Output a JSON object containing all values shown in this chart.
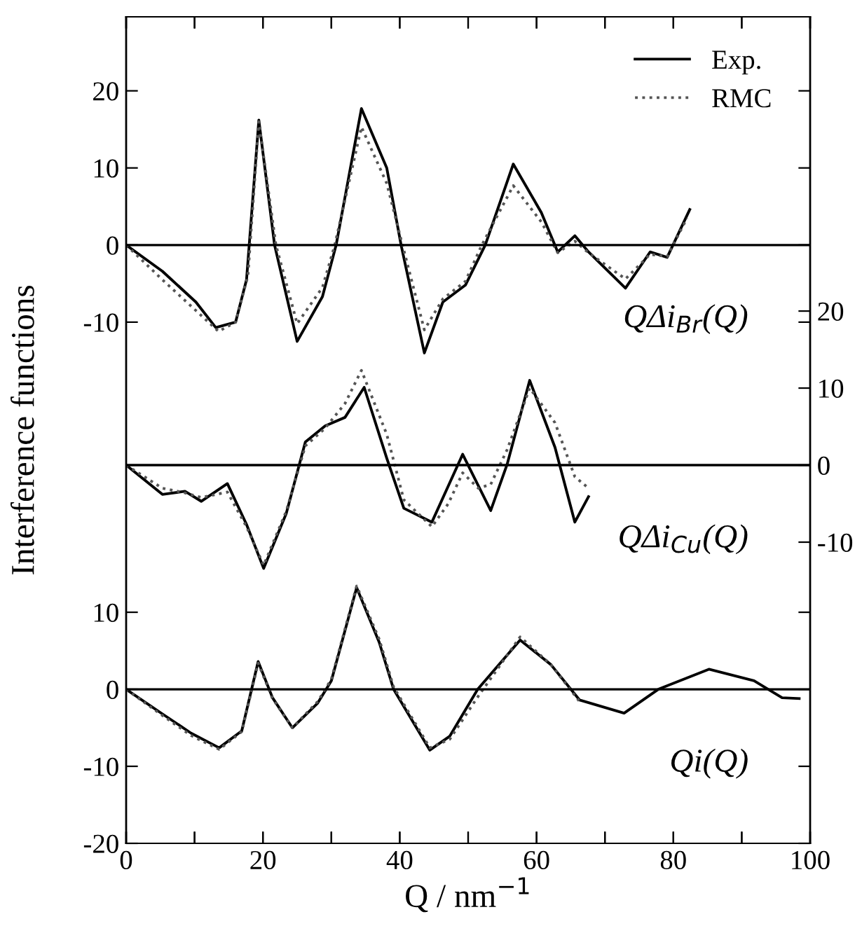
{
  "chart_data": [
    {
      "type": "line",
      "ylabel": "Interference functions",
      "xlim": [
        0,
        100
      ],
      "xticks": [
        {
          "value": 0,
          "label": null
        },
        {
          "value": 10,
          "label": null
        },
        {
          "value": 20,
          "label": null
        },
        {
          "value": 30,
          "label": null
        },
        {
          "value": 40,
          "label": null
        },
        {
          "value": 50,
          "label": null
        },
        {
          "value": 60,
          "label": null
        },
        {
          "value": 70,
          "label": null
        },
        {
          "value": 80,
          "label": null
        },
        {
          "value": 90,
          "label": null
        },
        {
          "value": 100,
          "label": null
        }
      ],
      "ylim": [
        -77.6,
        29.6
      ],
      "yticks": [
        -10,
        0,
        10,
        20
      ],
      "tick_labels": "y",
      "legend": "top right",
      "grid": false,
      "annotations": [
        "QΔi$_{Br}$(Q)"
      ],
      "ref_lines": [
        {
          "axis": "y",
          "value": 0,
          "color": "#000000"
        }
      ],
      "series": [
        {
          "name": "Exp.",
          "color": "#000000",
          "line_style": "solid",
          "x": [
            0,
            5.3,
            10.2,
            13.1,
            16,
            17.6,
            19.4,
            21.7,
            25,
            28.7,
            30.7,
            34.4,
            38.1,
            40.2,
            43.6,
            46.3,
            49.6,
            52.5,
            56.6,
            60.7,
            63.1,
            65.6,
            67.6,
            73,
            76.6,
            79.1,
            82.4
          ],
          "values": [
            0,
            -3.4,
            -7.4,
            -10.7,
            -10,
            -4.5,
            16.2,
            0,
            -12.5,
            -6.7,
            0,
            17.7,
            10,
            0,
            -14,
            -7.4,
            -5.2,
            0,
            10.5,
            4.2,
            -0.9,
            1.2,
            -0.9,
            -5.6,
            -0.9,
            -1.6,
            4.6
          ]
        },
        {
          "name": "RMC",
          "color": "#555555",
          "line_style": "dotted",
          "x": [
            0,
            5.3,
            10.2,
            13.5,
            16,
            17.8,
            19.4,
            21.9,
            25,
            28.7,
            30.5,
            34.4,
            38.1,
            40.4,
            43.6,
            46.3,
            49.6,
            52,
            56.6,
            60.7,
            63.1,
            65.6,
            67.6,
            73,
            76.6,
            79.1,
            82
          ],
          "values": [
            0,
            -4.5,
            -8.5,
            -11.2,
            -10,
            -4,
            16,
            0,
            -10.2,
            -5.5,
            0,
            15.3,
            8,
            0,
            -11,
            -7,
            -4.7,
            0,
            7.7,
            3,
            -1,
            0.5,
            -1,
            -4.4,
            -1.2,
            -1.5,
            3.5
          ]
        }
      ]
    },
    {
      "type": "line",
      "xlim": [
        0,
        100
      ],
      "xticks": [
        {
          "value": 0,
          "label": null
        },
        {
          "value": 100,
          "label": null
        }
      ],
      "y2lim": [
        -49.1,
        58.2
      ],
      "y2ticks": [
        -10,
        0,
        10,
        20
      ],
      "tick_labels": "y",
      "grid": false,
      "annotations": [
        "QΔi$_{Cu}$(Q)"
      ],
      "ref_lines": [
        {
          "axis": "y2",
          "value": 0,
          "color": "#000000"
        }
      ],
      "series": [
        {
          "color": "#000000",
          "line_style": "solid",
          "axis": "y2",
          "x": [
            0,
            5.3,
            8.6,
            11,
            14.8,
            17.6,
            20.1,
            23.4,
            26.2,
            29.1,
            32,
            34.8,
            38.1,
            40.6,
            44.7,
            47.1,
            49.2,
            53.3,
            55.7,
            59,
            62.7,
            65.6,
            67.6
          ],
          "values": [
            0,
            -3.8,
            -3.4,
            -4.7,
            -2.4,
            -7.7,
            -13.4,
            -6.3,
            3,
            5.1,
            6.2,
            10.1,
            0.9,
            -5.6,
            -7.4,
            -2.7,
            1.4,
            -5.9,
            0.1,
            11,
            2.3,
            -7.4,
            -4.1
          ]
        },
        {
          "color": "#555555",
          "line_style": "dotted",
          "axis": "y2",
          "x": [
            0,
            5.3,
            8.6,
            11,
            14.8,
            17.6,
            20.1,
            23.4,
            26.2,
            29.1,
            32,
            34.4,
            38.1,
            40.6,
            44.7,
            47.1,
            49.2,
            51.5,
            53.3,
            55.7,
            59,
            62.7,
            65.6,
            67.6
          ],
          "values": [
            0,
            -3,
            -3.6,
            -4.2,
            -3.5,
            -8,
            -13,
            -6,
            2.5,
            4.8,
            8,
            12.3,
            4,
            -4.5,
            -8,
            -5,
            -1,
            -3,
            -2.5,
            2,
            10,
            5.5,
            -1.5,
            -3
          ]
        }
      ]
    },
    {
      "type": "line",
      "xlabel": "Q / nm$^{−1}$",
      "xlim": [
        0,
        100
      ],
      "xticks": [
        0,
        {
          "value": 10,
          "label": null
        },
        20,
        {
          "value": 30,
          "label": null
        },
        40,
        {
          "value": 50,
          "label": null
        },
        60,
        {
          "value": 70,
          "label": null
        },
        80,
        {
          "value": 90,
          "label": null
        },
        100
      ],
      "ylim": [
        -20,
        87.3
      ],
      "yticks": [
        -20,
        -10,
        0,
        10
      ],
      "grid": false,
      "annotations": [
        "Qi(Q)"
      ],
      "ref_lines": [
        {
          "axis": "y",
          "value": 0,
          "color": "#000000"
        }
      ],
      "series": [
        {
          "color": "#000000",
          "line_style": "solid",
          "x": [
            0,
            5.3,
            9.5,
            13.6,
            16.9,
            19.3,
            21.4,
            24.3,
            28,
            30,
            33.7,
            37,
            39.1,
            44.4,
            47.3,
            51.4,
            57.6,
            62.1,
            66.3,
            72.8,
            77.8,
            85.2,
            91.8,
            95.9,
            98.4
          ],
          "values": [
            0,
            -3.2,
            -5.7,
            -7.6,
            -5.4,
            3.6,
            -1.1,
            -5,
            -1.8,
            1.1,
            13.2,
            6.1,
            0,
            -7.9,
            -6.1,
            0,
            6.4,
            3.2,
            -1.4,
            -3.1,
            0,
            2.6,
            1.1,
            -1.1,
            -1.2
          ]
        },
        {
          "color": "#555555",
          "line_style": "dotted",
          "x": [
            0,
            5.3,
            9.5,
            13.6,
            16.9,
            19.3,
            21.4,
            24.3,
            28,
            30,
            33.7,
            37,
            39.1,
            44.4,
            47.3,
            51.4,
            57.6,
            62.1,
            66.3
          ],
          "values": [
            0,
            -3.4,
            -6,
            -7.8,
            -5.5,
            3.4,
            -1.2,
            -5,
            -1.6,
            1.3,
            13.4,
            6.5,
            0.3,
            -7.6,
            -6.5,
            -1,
            6.8,
            3.2,
            -1.6
          ]
        }
      ]
    }
  ]
}
